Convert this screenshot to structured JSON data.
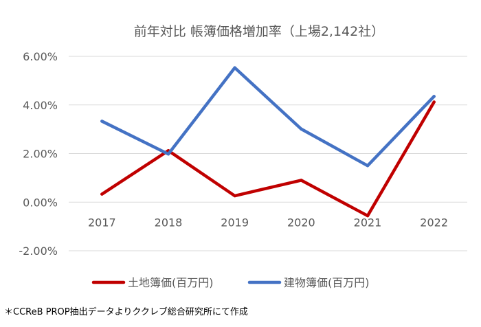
{
  "chart_data": {
    "type": "line",
    "title": "前年対比 帳簿価格増加率（上場2,142社）",
    "categories": [
      "2017",
      "2018",
      "2019",
      "2020",
      "2021",
      "2022"
    ],
    "series": [
      {
        "name": "土地簿価(百万円)",
        "color": "#c00000",
        "values": [
          0.33,
          2.12,
          0.26,
          0.9,
          -0.56,
          4.12
        ]
      },
      {
        "name": "建物簿価(百万円)",
        "color": "#4472c4",
        "values": [
          3.33,
          1.98,
          5.53,
          3.01,
          1.5,
          4.35
        ]
      }
    ],
    "ylim": [
      -2,
      6
    ],
    "yticks": [
      -2,
      0,
      2,
      4,
      6
    ],
    "ytick_labels": [
      "-2.00%",
      "0.00%",
      "2.00%",
      "4.00%",
      "6.00%"
    ],
    "xlabel": "",
    "ylabel": "",
    "grid": true,
    "legend_position": "bottom"
  },
  "footnote": "＊CCReB PROP抽出データよりククレブ総合研究所にて作成"
}
